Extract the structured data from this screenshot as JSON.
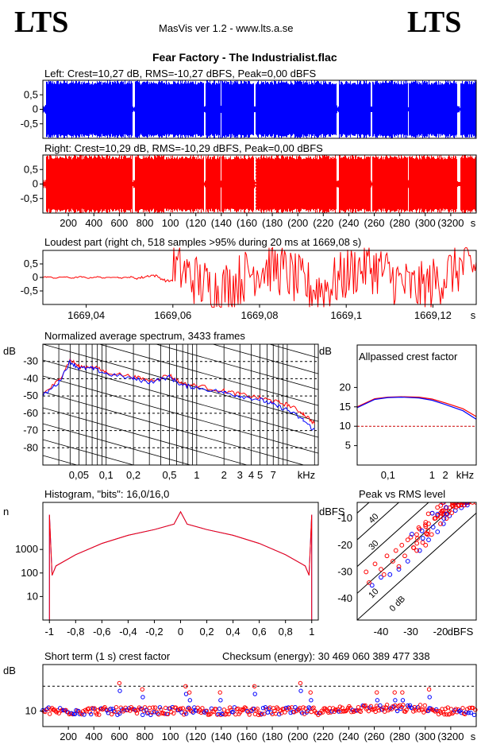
{
  "header": {
    "logo_left": "LTS",
    "logo_right": "LTS",
    "app_title": "MasVis ver 1.2 - www.lts.a.se",
    "track_title": "Fear Factory - The Industrialist.flac"
  },
  "colors": {
    "left": "#0000ff",
    "right": "#ff0000",
    "ref_line": "#cc0000"
  },
  "chart_data": [
    {
      "type": "area",
      "title": "Left: Crest=10,27 dB, RMS=-10,27 dBFS, Peak=0,00 dBFS",
      "yticks": [
        "0,5",
        "0",
        "-0,5"
      ],
      "ylim": [
        -1,
        1
      ],
      "xlim": [
        0,
        3400
      ],
      "color": "blue",
      "quiet_segments": [
        [
          0,
          20
        ],
        [
          200,
          205
        ],
        [
          700,
          720
        ],
        [
          1260,
          1275
        ],
        [
          1390,
          1395
        ],
        [
          1655,
          1665
        ],
        [
          2300,
          2320
        ],
        [
          2570,
          2580
        ],
        [
          2860,
          2870
        ],
        [
          3250,
          3270
        ]
      ]
    },
    {
      "type": "area",
      "title": "Right: Crest=10,29 dB, RMS=-10,29 dBFS, Peak=0,00 dBFS",
      "yticks": [
        "0,5",
        "0",
        "-0,5"
      ],
      "ylim": [
        -1,
        1
      ],
      "xlim": [
        0,
        3400
      ],
      "color": "red",
      "xticks": [
        "200",
        "400",
        "600",
        "800",
        "1000",
        "1200",
        "1400",
        "1600",
        "1800",
        "2000",
        "2200",
        "2400",
        "2600",
        "2800",
        "3000",
        "3200"
      ],
      "xtick_labels_shown": [
        "200",
        "400",
        "600",
        "800",
        "100",
        "(120",
        "(140",
        "(160",
        "(180",
        "(200",
        "(220",
        "(240",
        "(260",
        "(280",
        "(300",
        "(3200"
      ],
      "xunit": "s",
      "marker_x": 1669
    },
    {
      "type": "line",
      "title": "Loudest part (right ch, 518 samples >95% during 20 ms at 1669,08 s)",
      "yticks": [
        "0,5",
        "0",
        "-0,5"
      ],
      "ylim": [
        -1,
        1
      ],
      "xlim": [
        1669.03,
        1669.13
      ],
      "xticks": [
        "1669,04",
        "1669,06",
        "1669,08",
        "1669,1",
        "1669,12"
      ],
      "xunit": "s"
    },
    {
      "type": "line",
      "title": "Normalized average spectrum, 3433 frames",
      "ylabel": "dB",
      "yticks": [
        "-30",
        "-40",
        "-50",
        "-60",
        "-70",
        "-80"
      ],
      "ylim": [
        -90,
        -20
      ],
      "xscale": "log",
      "xlim": [
        0.02,
        22
      ],
      "xticks": [
        "0,05",
        "0,1",
        "0,2",
        "0,5",
        "1",
        "2",
        "3",
        "4",
        "5",
        "7"
      ],
      "xunit": "kHz",
      "x": [
        0.02,
        0.03,
        0.04,
        0.05,
        0.07,
        0.1,
        0.2,
        0.3,
        0.5,
        0.7,
        1,
        2,
        3,
        5,
        7,
        10,
        15,
        20
      ],
      "series": [
        {
          "color": "red",
          "values": [
            -49,
            -41,
            -29,
            -33,
            -33,
            -36,
            -39,
            -41,
            -38,
            -43,
            -44,
            -47,
            -49,
            -51,
            -53,
            -55,
            -60,
            -66
          ]
        },
        {
          "color": "blue",
          "values": [
            -50,
            -42,
            -30,
            -34,
            -34,
            -37,
            -40,
            -42,
            -39,
            -44,
            -45,
            -48,
            -50,
            -52,
            -55,
            -58,
            -64,
            -70
          ]
        }
      ]
    },
    {
      "type": "line",
      "title": "Allpassed crest factor",
      "ylabel": "dB",
      "yticks": [
        "20",
        "15",
        "10",
        "5"
      ],
      "ylim": [
        0,
        25
      ],
      "xscale": "log",
      "xlim": [
        0.02,
        10
      ],
      "xticks": [
        "0,1",
        "1",
        "2"
      ],
      "xunit": "kHz",
      "reference_y": 10,
      "x": [
        0.02,
        0.05,
        0.1,
        0.2,
        0.5,
        1,
        2,
        5,
        10
      ],
      "series": [
        {
          "color": "red",
          "values": [
            15,
            17.1,
            17.5,
            17.6,
            17.5,
            17,
            16,
            14.5,
            12.5
          ]
        },
        {
          "color": "blue",
          "values": [
            14.8,
            16.9,
            17.4,
            17.5,
            17.3,
            16.7,
            15.6,
            14,
            11.8
          ]
        }
      ]
    },
    {
      "type": "line",
      "title": "Histogram, \"bits\": 16,0/16,0",
      "ylabel": "n",
      "yscale": "log",
      "yticks": [
        "1000",
        "100",
        "10"
      ],
      "ylim": [
        1,
        100000
      ],
      "xlim": [
        -1.05,
        1.05
      ],
      "xticks": [
        "-1",
        "-0,8",
        "-0,6",
        "-0,4",
        "-0,2",
        "0",
        "0,2",
        "0,4",
        "0,6",
        "0,8",
        "1"
      ],
      "x": [
        -1,
        -0.98,
        -0.95,
        -0.8,
        -0.6,
        -0.4,
        -0.2,
        -0.05,
        0,
        0.05,
        0.2,
        0.4,
        0.6,
        0.8,
        0.95,
        0.98,
        1
      ],
      "series": [
        {
          "color": "red",
          "values": [
            30000,
            80,
            200,
            600,
            1800,
            4000,
            7000,
            12000,
            40000,
            12000,
            7000,
            4000,
            1800,
            600,
            200,
            80,
            30000
          ]
        }
      ]
    },
    {
      "type": "scatter",
      "title": "Peak vs RMS level",
      "ylabel": "dBFS",
      "xunit": "dBFS",
      "xlim": [
        -48,
        -8
      ],
      "ylim": [
        -48,
        -4
      ],
      "xticks": [
        "-40",
        "-30",
        "-20"
      ],
      "yticks": [
        "-10",
        "-20",
        "-30",
        "-40"
      ],
      "diagonal_labels": [
        "40",
        "30",
        "10",
        "0 dB"
      ],
      "diagonal_offsets": [
        40,
        30,
        20,
        10,
        0
      ],
      "points_red": [
        [
          -45,
          -30
        ],
        [
          -42,
          -27
        ],
        [
          -38,
          -24
        ],
        [
          -35,
          -22
        ],
        [
          -33,
          -20
        ],
        [
          -31,
          -18
        ],
        [
          -30,
          -17
        ],
        [
          -28,
          -16
        ],
        [
          -27,
          -14
        ],
        [
          -25,
          -13
        ],
        [
          -24,
          -12
        ],
        [
          -22,
          -10
        ],
        [
          -21,
          -9
        ],
        [
          -20,
          -8
        ],
        [
          -19,
          -7
        ],
        [
          -18,
          -6
        ],
        [
          -17,
          -6
        ],
        [
          -16,
          -5
        ],
        [
          -15,
          -5
        ],
        [
          -14,
          -5
        ],
        [
          -13,
          -5
        ],
        [
          -12,
          -5
        ],
        [
          -40,
          -29
        ],
        [
          -36,
          -26
        ],
        [
          -32,
          -24
        ],
        [
          -29,
          -21
        ],
        [
          -26,
          -19
        ],
        [
          -23,
          -16
        ],
        [
          -20,
          -12
        ],
        [
          -18,
          -10
        ],
        [
          -44,
          -34
        ],
        [
          -39,
          -31
        ],
        [
          -34,
          -28
        ],
        [
          -28,
          -22
        ],
        [
          -25,
          -20
        ]
      ],
      "points_blue": [
        [
          -43,
          -35
        ],
        [
          -40,
          -32
        ],
        [
          -37,
          -31
        ],
        [
          -34,
          -29
        ],
        [
          -31,
          -26
        ],
        [
          -27,
          -22
        ],
        [
          -24,
          -18
        ],
        [
          -21,
          -15
        ],
        [
          -19,
          -12
        ],
        [
          -17,
          -9
        ],
        [
          -15,
          -7
        ],
        [
          -13,
          -6
        ],
        [
          -12,
          -5
        ],
        [
          -11,
          -5
        ]
      ]
    },
    {
      "type": "scatter",
      "title": "Short term (1 s) crest factor",
      "extra_label": "Checksum (energy):  30 469 060 389 477 338",
      "ylabel": "dB",
      "ytick": "10",
      "ylim": [
        5,
        25
      ],
      "reference_y": 18,
      "xlim": [
        0,
        3400
      ],
      "xticks": [
        "200",
        "400",
        "600",
        "800",
        "1000",
        "1200",
        "1400",
        "1600",
        "1800",
        "2000",
        "2200",
        "2400",
        "2600",
        "2800",
        "3000",
        "3200"
      ],
      "xtick_labels_shown": [
        "200",
        "400",
        "600",
        "800",
        "100",
        "(120",
        "(140",
        "(160",
        "(180",
        "(200",
        "(220",
        "(240",
        "(260",
        "(280",
        "(300",
        "(3200"
      ],
      "xunit": "s",
      "peaks": [
        [
          600,
          19
        ],
        [
          780,
          17
        ],
        [
          1120,
          18
        ],
        [
          1150,
          16
        ],
        [
          1390,
          16
        ],
        [
          1660,
          18
        ],
        [
          2020,
          19
        ],
        [
          2100,
          16
        ],
        [
          2620,
          16
        ],
        [
          2820,
          16
        ],
        [
          3030,
          17
        ],
        [
          2760,
          16
        ]
      ]
    }
  ]
}
